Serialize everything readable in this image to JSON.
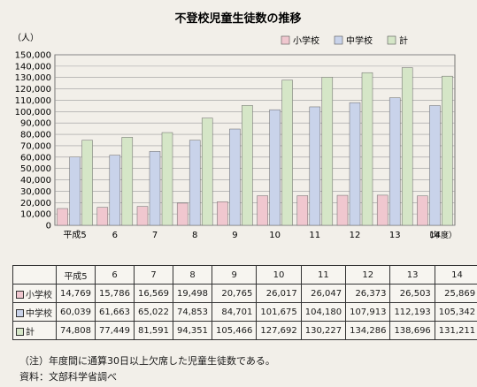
{
  "chart_data": {
    "type": "bar",
    "title": "不登校児童生徒数の推移",
    "ylabel": "（人）",
    "ylim": [
      0,
      150000
    ],
    "yticks": [
      0,
      10000,
      20000,
      30000,
      40000,
      50000,
      60000,
      70000,
      80000,
      90000,
      100000,
      110000,
      120000,
      130000,
      140000,
      150000
    ],
    "ytick_labels": [
      "0",
      "10,000",
      "20,000",
      "30,000",
      "40,000",
      "50,000",
      "60,000",
      "70,000",
      "80,000",
      "90,000",
      "100,000",
      "110,000",
      "120,000",
      "130,000",
      "140,000",
      "150,000"
    ],
    "categories": [
      "平成5",
      "6",
      "7",
      "8",
      "9",
      "10",
      "11",
      "12",
      "13",
      "14"
    ],
    "x_suffix": "（年度）",
    "grid": true,
    "legend_position": "top-right",
    "series": [
      {
        "name": "小学校",
        "color": "#f0c7cf",
        "values": [
          14769,
          15786,
          16569,
          19498,
          20765,
          26017,
          26047,
          26373,
          26503,
          25869
        ]
      },
      {
        "name": "中学校",
        "color": "#c9d3ea",
        "values": [
          60039,
          61663,
          65022,
          74853,
          84701,
          101675,
          104180,
          107913,
          112193,
          105342
        ]
      },
      {
        "name": "計",
        "color": "#d5e6c7",
        "values": [
          74808,
          77449,
          81591,
          94351,
          105466,
          127692,
          130227,
          134286,
          138696,
          131211
        ]
      }
    ]
  },
  "table": {
    "headers": [
      "平成5",
      "6",
      "7",
      "8",
      "9",
      "10",
      "11",
      "12",
      "13",
      "14"
    ],
    "rows": [
      {
        "label": "小学校",
        "color": "#f0c7cf",
        "cells": [
          "14,769",
          "15,786",
          "16,569",
          "19,498",
          "20,765",
          "26,017",
          "26,047",
          "26,373",
          "26,503",
          "25,869"
        ]
      },
      {
        "label": "中学校",
        "color": "#c9d3ea",
        "cells": [
          "60,039",
          "61,663",
          "65,022",
          "74,853",
          "84,701",
          "101,675",
          "104,180",
          "107,913",
          "112,193",
          "105,342"
        ]
      },
      {
        "label": "計",
        "color": "#d5e6c7",
        "cells": [
          "74,808",
          "77,449",
          "81,591",
          "94,351",
          "105,466",
          "127,692",
          "130,227",
          "134,286",
          "138,696",
          "131,211"
        ]
      }
    ]
  },
  "notes": {
    "note": "（注）年度間に通算30日以上欠席した児童生徒数である。",
    "source": "資料：文部科学省調べ"
  }
}
